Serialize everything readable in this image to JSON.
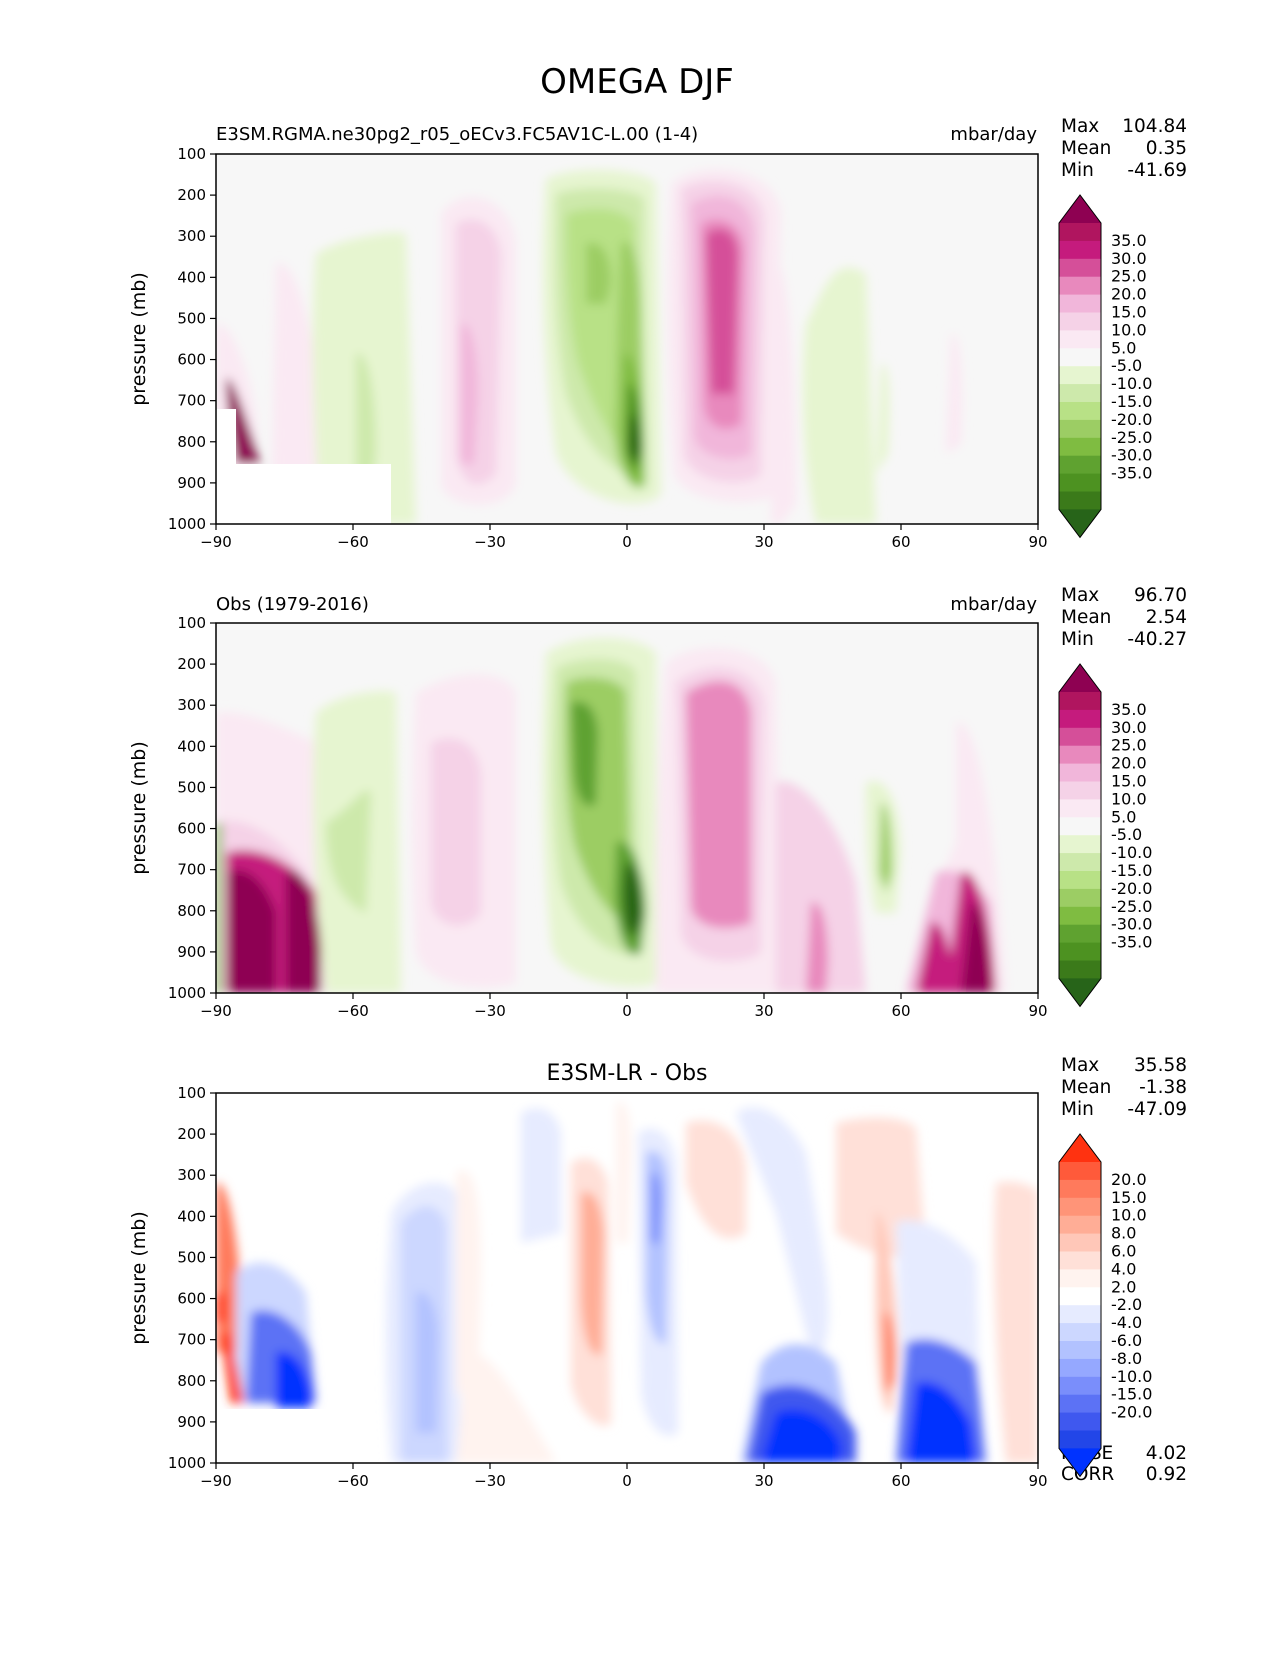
{
  "figure_title": "OMEGA DJF",
  "chart_data": [
    {
      "type": "heatmap",
      "title_left": "E3SM.RGMA.ne30pg2_r05_oECv3.FC5AV1C-L.00 (1-4)",
      "title_right": "mbar/day",
      "title_center": "",
      "xlabel": "",
      "ylabel": "pressure (mb)",
      "xlim": [
        -90,
        90
      ],
      "ylim": [
        1000,
        100
      ],
      "xticks": [
        "−90",
        "−60",
        "−30",
        "0",
        "30",
        "60",
        "90"
      ],
      "yticks": [
        "100",
        "200",
        "300",
        "400",
        "500",
        "600",
        "700",
        "800",
        "900",
        "1000"
      ],
      "stats": [
        {
          "label": "Max",
          "value": "104.84"
        },
        {
          "label": "Mean",
          "value": "0.35"
        },
        {
          "label": "Min",
          "value": "-41.69"
        }
      ],
      "extra_stats": [],
      "colorbar": {
        "labels": [
          "35.0",
          "30.0",
          "25.0",
          "20.0",
          "15.0",
          "10.0",
          "5.0",
          "-5.0",
          "-10.0",
          "-15.0",
          "-20.0",
          "-25.0",
          "-30.0",
          "-35.0"
        ],
        "colors": [
          "#8e0152",
          "#b0155f",
          "#c51b7d",
          "#d54f99",
          "#e889bd",
          "#f1b6da",
          "#f5d2e7",
          "#fae9f3",
          "#f7f7f7",
          "#e6f5d0",
          "#cde9ab",
          "#b8e186",
          "#9ccd64",
          "#7fbc41",
          "#5fa230",
          "#4d9221",
          "#3b7a1a",
          "#276419"
        ]
      },
      "features": [
        {
          "type": "ascent_max",
          "lat_range": [
            0,
            10
          ],
          "level": 850,
          "value": -35
        },
        {
          "type": "descent_max",
          "lat_range": [
            15,
            30
          ],
          "level": 500,
          "value": 30
        },
        {
          "type": "ascent",
          "lat_range": [
            -18,
            8
          ],
          "level": 400,
          "value": -20
        },
        {
          "type": "descent",
          "lat_range": [
            -40,
            -25
          ],
          "level": 600,
          "value": 10
        },
        {
          "type": "ascent",
          "lat_range": [
            -68,
            -48
          ],
          "level": 600,
          "value": -5
        },
        {
          "type": "ascent",
          "lat_range": [
            50,
            62
          ],
          "level": 600,
          "value": -5
        },
        {
          "type": "descent_max",
          "lat_range": [
            -88,
            -80
          ],
          "level": 800,
          "value": 35
        }
      ]
    },
    {
      "type": "heatmap",
      "title_left": "Obs (1979-2016)",
      "title_right": "mbar/day",
      "title_center": "",
      "xlabel": "",
      "ylabel": "pressure (mb)",
      "xlim": [
        -90,
        90
      ],
      "ylim": [
        1000,
        100
      ],
      "xticks": [
        "−90",
        "−60",
        "−30",
        "0",
        "30",
        "60",
        "90"
      ],
      "yticks": [
        "100",
        "200",
        "300",
        "400",
        "500",
        "600",
        "700",
        "800",
        "900",
        "1000"
      ],
      "stats": [
        {
          "label": "Max",
          "value": "96.70"
        },
        {
          "label": "Mean",
          "value": "2.54"
        },
        {
          "label": "Min",
          "value": "-40.27"
        }
      ],
      "extra_stats": [],
      "colorbar": {
        "labels": [
          "35.0",
          "30.0",
          "25.0",
          "20.0",
          "15.0",
          "10.0",
          "5.0",
          "-5.0",
          "-10.0",
          "-15.0",
          "-20.0",
          "-25.0",
          "-30.0",
          "-35.0"
        ],
        "colors": [
          "#8e0152",
          "#b0155f",
          "#c51b7d",
          "#d54f99",
          "#e889bd",
          "#f1b6da",
          "#f5d2e7",
          "#fae9f3",
          "#f7f7f7",
          "#e6f5d0",
          "#cde9ab",
          "#b8e186",
          "#9ccd64",
          "#7fbc41",
          "#5fa230",
          "#4d9221",
          "#3b7a1a",
          "#276419"
        ]
      },
      "features": [
        {
          "type": "ascent_max",
          "lat_range": [
            2,
            10
          ],
          "level": 850,
          "value": -35
        },
        {
          "type": "descent_max",
          "lat_range": [
            15,
            35
          ],
          "level": 450,
          "value": 20
        },
        {
          "type": "ascent",
          "lat_range": [
            -15,
            5
          ],
          "level": 400,
          "value": -25
        },
        {
          "type": "descent",
          "lat_range": [
            -43,
            -25
          ],
          "level": 550,
          "value": 10
        },
        {
          "type": "ascent",
          "lat_range": [
            -67,
            -50
          ],
          "level": 500,
          "value": -5
        },
        {
          "type": "descent_max",
          "lat_range": [
            -88,
            -66
          ],
          "level": 900,
          "value": 35
        },
        {
          "type": "descent_max",
          "lat_range": [
            62,
            82
          ],
          "level": 950,
          "value": 35
        }
      ]
    },
    {
      "type": "heatmap",
      "title_left": "",
      "title_right": "",
      "title_center": "E3SM-LR - Obs",
      "xlabel": "",
      "ylabel": "pressure (mb)",
      "xlim": [
        -90,
        90
      ],
      "ylim": [
        1000,
        100
      ],
      "xticks": [
        "−90",
        "−60",
        "−30",
        "0",
        "30",
        "60",
        "90"
      ],
      "yticks": [
        "100",
        "200",
        "300",
        "400",
        "500",
        "600",
        "700",
        "800",
        "900",
        "1000"
      ],
      "stats": [
        {
          "label": "Max",
          "value": "35.58"
        },
        {
          "label": "Mean",
          "value": "-1.38"
        },
        {
          "label": "Min",
          "value": "-47.09"
        }
      ],
      "extra_stats": [
        {
          "label": "RMSE",
          "value": "4.02"
        },
        {
          "label": "CORR",
          "value": "0.92"
        }
      ],
      "colorbar": {
        "labels": [
          "20.0",
          "15.0",
          "10.0",
          "8.0",
          "6.0",
          "4.0",
          "2.0",
          "-2.0",
          "-4.0",
          "-6.0",
          "-8.0",
          "-10.0",
          "-15.0",
          "-20.0"
        ],
        "colors": [
          "#ff3210",
          "#ff5a3a",
          "#ff7a5c",
          "#ff9478",
          "#ffad96",
          "#ffc7b8",
          "#ffe0d8",
          "#fff3ef",
          "#ffffff",
          "#e6ebff",
          "#ccd7ff",
          "#b2c2ff",
          "#95a8ff",
          "#7a8efb",
          "#5c72f5",
          "#3f58ef",
          "#2246e8",
          "#0033ff"
        ]
      },
      "features": [
        {
          "type": "negative",
          "lat_range": [
            -50,
            -35
          ],
          "level": 700,
          "value": -6
        },
        {
          "type": "positive",
          "lat_range": [
            -12,
            0
          ],
          "level": 500,
          "value": 6
        },
        {
          "type": "negative",
          "lat_range": [
            2,
            12
          ],
          "level": 400,
          "value": -8
        },
        {
          "type": "positive",
          "lat_range": [
            -35,
            -28
          ],
          "level": 600,
          "value": 2
        },
        {
          "type": "negative_max",
          "lat_range": [
            30,
            55
          ],
          "level": 950,
          "value": -20
        },
        {
          "type": "negative_max",
          "lat_range": [
            62,
            82
          ],
          "level": 920,
          "value": -20
        },
        {
          "type": "positive",
          "lat_range": [
            45,
            65
          ],
          "level": 300,
          "value": 2
        },
        {
          "type": "positive_max",
          "lat_range": [
            -90,
            -86
          ],
          "level": 600,
          "value": 20
        },
        {
          "type": "negative_max",
          "lat_range": [
            -84,
            -66
          ],
          "level": 820,
          "value": -20
        }
      ]
    }
  ]
}
